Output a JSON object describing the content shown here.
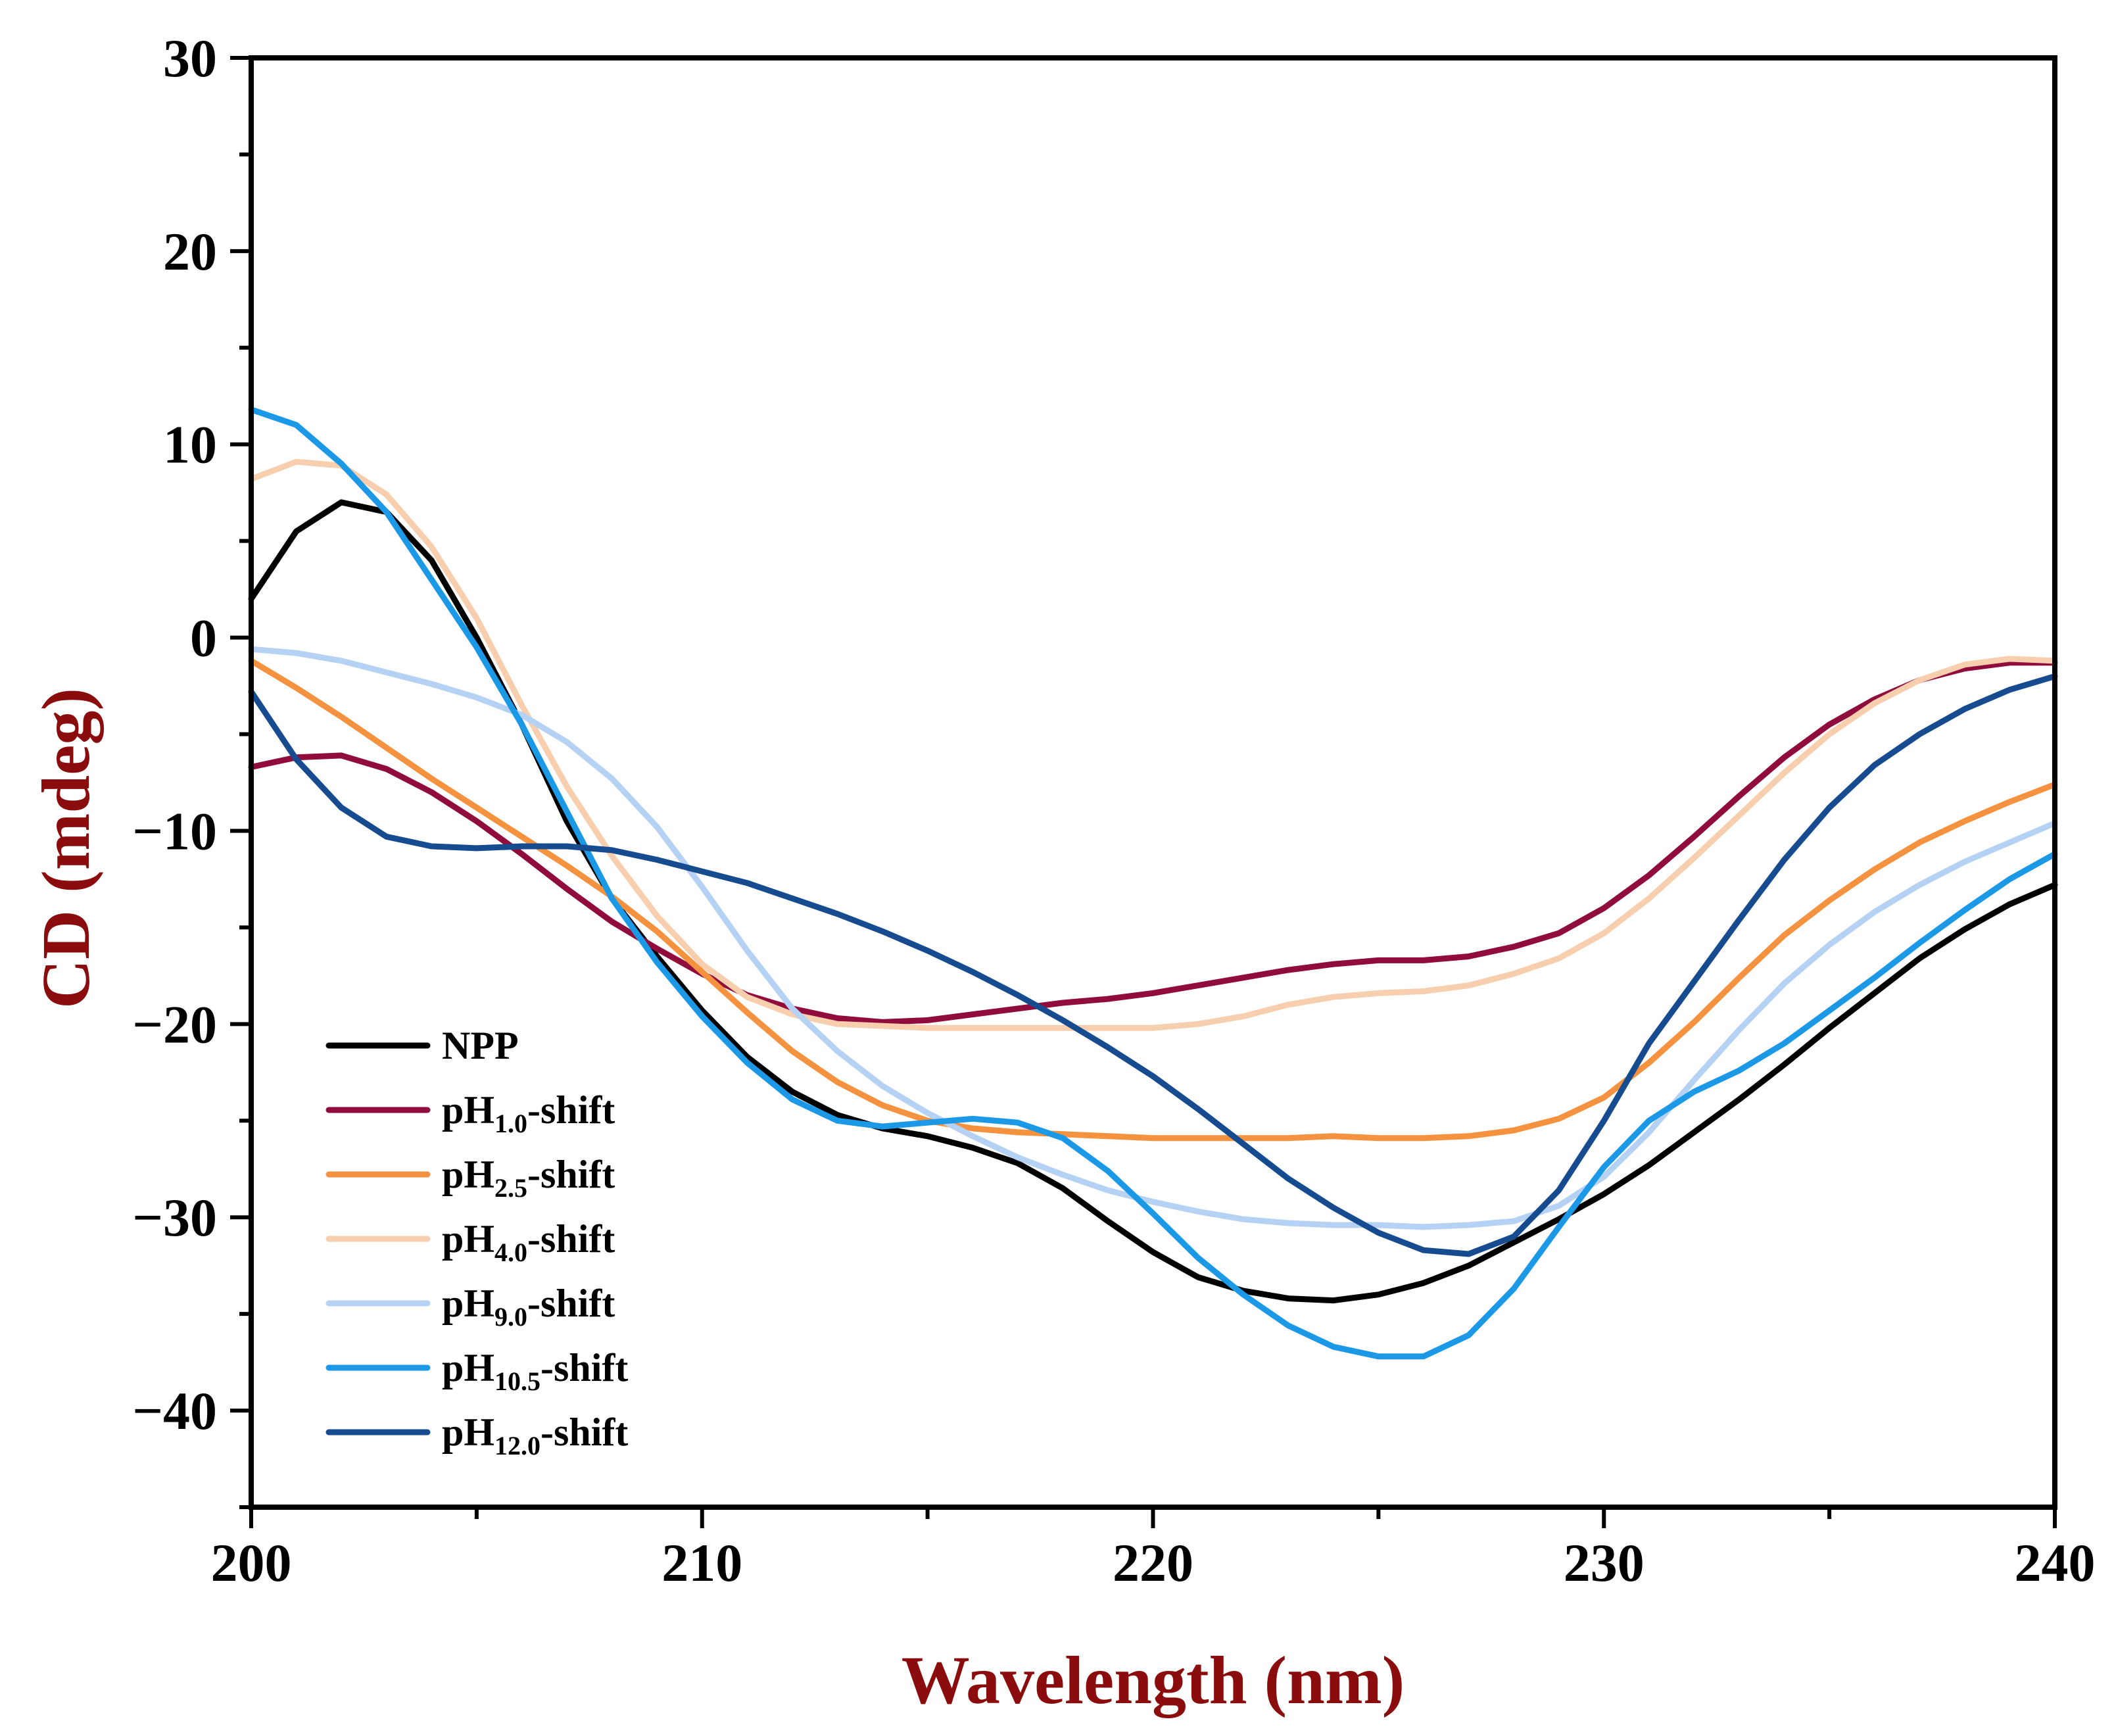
{
  "chart_data": {
    "type": "line",
    "title": "",
    "xlabel": "Wavelength (nm)",
    "ylabel": "CD (mdeg)",
    "xlim": [
      200,
      240
    ],
    "ylim": [
      -45,
      30
    ],
    "xticks": [
      200,
      210,
      220,
      230,
      240
    ],
    "yticks": [
      30,
      20,
      10,
      0,
      -10,
      -20,
      -30,
      -40
    ],
    "xtick_labels": [
      "200",
      "210",
      "220",
      "230",
      "240"
    ],
    "ytick_labels": [
      "30",
      "20",
      "10",
      "0",
      "−10",
      "−20",
      "−30",
      "−40"
    ],
    "grid": false,
    "legend_position": "lower-left",
    "x": [
      200,
      201,
      202,
      203,
      204,
      205,
      206,
      207,
      208,
      209,
      210,
      211,
      212,
      213,
      214,
      215,
      216,
      217,
      218,
      219,
      220,
      221,
      222,
      223,
      224,
      225,
      226,
      227,
      228,
      229,
      230,
      231,
      232,
      233,
      234,
      235,
      236,
      237,
      238,
      239,
      240
    ],
    "series": [
      {
        "name": "NPP",
        "base": "NPP",
        "sub": "",
        "suffix": "",
        "color": "#000000",
        "values": [
          2,
          5.5,
          7,
          6.5,
          4,
          0,
          -4.5,
          -9.5,
          -13.5,
          -16.5,
          -19.3,
          -21.7,
          -23.5,
          -24.7,
          -25.4,
          -25.8,
          -26.4,
          -27.2,
          -28.5,
          -30.2,
          -31.8,
          -33.1,
          -33.8,
          -34.2,
          -34.3,
          -34.0,
          -33.4,
          -32.5,
          -31.3,
          -30.1,
          -28.8,
          -27.3,
          -25.6,
          -23.9,
          -22.1,
          -20.2,
          -18.4,
          -16.6,
          -15.1,
          -13.8,
          -12.8
        ]
      },
      {
        "name": "pH1.0-shift",
        "base": "pH",
        "sub": "1.0",
        "suffix": "-shift",
        "color": "#8f0c3c",
        "values": [
          -6.7,
          -6.2,
          -6.1,
          -6.8,
          -8.0,
          -9.5,
          -11.2,
          -13.0,
          -14.7,
          -16.1,
          -17.4,
          -18.5,
          -19.2,
          -19.7,
          -19.9,
          -19.8,
          -19.5,
          -19.2,
          -18.9,
          -18.7,
          -18.4,
          -18.0,
          -17.6,
          -17.2,
          -16.9,
          -16.7,
          -16.7,
          -16.5,
          -16.0,
          -15.3,
          -14.0,
          -12.3,
          -10.3,
          -8.2,
          -6.2,
          -4.5,
          -3.2,
          -2.2,
          -1.6,
          -1.3,
          -1.3
        ]
      },
      {
        "name": "pH2.5-shift",
        "base": "pH",
        "sub": "2.5",
        "suffix": "-shift",
        "color": "#f59240",
        "values": [
          -1.2,
          -2.6,
          -4.1,
          -5.7,
          -7.3,
          -8.8,
          -10.3,
          -11.8,
          -13.4,
          -15.2,
          -17.3,
          -19.4,
          -21.4,
          -23.0,
          -24.2,
          -25.0,
          -25.4,
          -25.6,
          -25.7,
          -25.8,
          -25.9,
          -25.9,
          -25.9,
          -25.9,
          -25.8,
          -25.9,
          -25.9,
          -25.8,
          -25.5,
          -24.9,
          -23.8,
          -22.0,
          -19.9,
          -17.6,
          -15.4,
          -13.6,
          -12.0,
          -10.6,
          -9.5,
          -8.5,
          -7.6
        ]
      },
      {
        "name": "pH4.0-shift",
        "base": "pH",
        "sub": "4.0",
        "suffix": "-shift",
        "color": "#f8cfae",
        "values": [
          8.2,
          9.1,
          8.9,
          7.4,
          4.7,
          1.0,
          -3.5,
          -7.7,
          -11.3,
          -14.4,
          -16.9,
          -18.6,
          -19.5,
          -20.0,
          -20.1,
          -20.2,
          -20.2,
          -20.2,
          -20.2,
          -20.2,
          -20.2,
          -20.0,
          -19.6,
          -19.0,
          -18.6,
          -18.4,
          -18.3,
          -18.0,
          -17.4,
          -16.6,
          -15.3,
          -13.5,
          -11.4,
          -9.2,
          -7.0,
          -5.0,
          -3.4,
          -2.2,
          -1.4,
          -1.1,
          -1.2
        ]
      },
      {
        "name": "pH9.0-shift",
        "base": "pH",
        "sub": "9.0",
        "suffix": "-shift",
        "color": "#b5d2f4",
        "values": [
          -0.6,
          -0.8,
          -1.2,
          -1.8,
          -2.4,
          -3.1,
          -4.0,
          -5.4,
          -7.3,
          -9.8,
          -12.9,
          -16.2,
          -19.2,
          -21.4,
          -23.2,
          -24.6,
          -25.8,
          -26.9,
          -27.8,
          -28.6,
          -29.2,
          -29.7,
          -30.1,
          -30.3,
          -30.4,
          -30.4,
          -30.5,
          -30.4,
          -30.2,
          -29.4,
          -27.9,
          -25.6,
          -22.9,
          -20.3,
          -17.9,
          -15.9,
          -14.2,
          -12.8,
          -11.6,
          -10.6,
          -9.6
        ]
      },
      {
        "name": "pH10.5-shift",
        "base": "pH",
        "sub": "10.5",
        "suffix": "-shift",
        "color": "#1c99e6",
        "values": [
          11.8,
          11.0,
          9.0,
          6.5,
          3.0,
          -0.5,
          -4.5,
          -9.0,
          -13.5,
          -16.8,
          -19.6,
          -22.0,
          -23.9,
          -25.0,
          -25.3,
          -25.1,
          -24.9,
          -25.1,
          -25.9,
          -27.6,
          -29.8,
          -32.1,
          -34.0,
          -35.6,
          -36.7,
          -37.2,
          -37.2,
          -36.1,
          -33.7,
          -30.5,
          -27.4,
          -25.0,
          -23.5,
          -22.4,
          -21.0,
          -19.3,
          -17.6,
          -15.8,
          -14.1,
          -12.5,
          -11.2
        ]
      },
      {
        "name": "pH12.0-shift",
        "base": "pH",
        "sub": "12.0",
        "suffix": "-shift",
        "color": "#164c8f",
        "values": [
          -2.8,
          -6.3,
          -8.8,
          -10.3,
          -10.8,
          -10.9,
          -10.8,
          -10.8,
          -11.0,
          -11.5,
          -12.1,
          -12.7,
          -13.5,
          -14.3,
          -15.2,
          -16.2,
          -17.3,
          -18.5,
          -19.8,
          -21.2,
          -22.7,
          -24.4,
          -26.2,
          -28.0,
          -29.5,
          -30.8,
          -31.7,
          -31.9,
          -31.0,
          -28.6,
          -25.0,
          -21.0,
          -17.8,
          -14.6,
          -11.5,
          -8.8,
          -6.6,
          -5.0,
          -3.7,
          -2.7,
          -2.0
        ]
      }
    ]
  }
}
